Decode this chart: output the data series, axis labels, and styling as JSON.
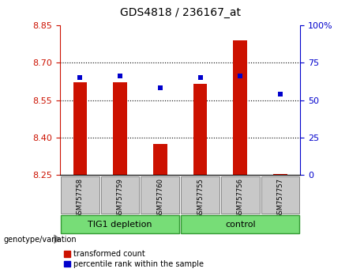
{
  "title": "GDS4818 / 236167_at",
  "samples": [
    "GSM757758",
    "GSM757759",
    "GSM757760",
    "GSM757755",
    "GSM757756",
    "GSM757757"
  ],
  "group_labels": [
    "TIG1 depletion",
    "control"
  ],
  "transformed_counts": [
    8.62,
    8.62,
    8.375,
    8.615,
    8.79,
    8.255
  ],
  "percentile_ranks": [
    65,
    66,
    58,
    65,
    66,
    54
  ],
  "bar_bottom": 8.25,
  "ylim_left": [
    8.25,
    8.85
  ],
  "ylim_right": [
    0,
    100
  ],
  "yticks_left": [
    8.25,
    8.4,
    8.55,
    8.7,
    8.85
  ],
  "yticks_right": [
    0,
    25,
    50,
    75,
    100
  ],
  "bar_color": "#CC1100",
  "dot_color": "#0000CC",
  "left_axis_color": "#CC1100",
  "right_axis_color": "#0000CC",
  "legend_labels": [
    "transformed count",
    "percentile rank within the sample"
  ],
  "bar_width": 0.35
}
